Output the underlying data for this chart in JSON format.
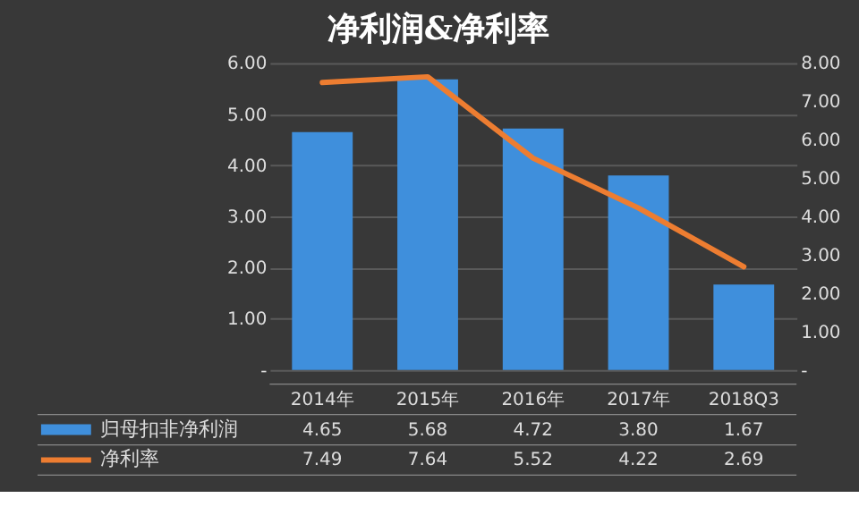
{
  "chart_data": {
    "type": "bar",
    "title": "净利润&净利率",
    "categories": [
      "2014年",
      "2015年",
      "2016年",
      "2017年",
      "2018Q3"
    ],
    "series": [
      {
        "name": "归母扣非净利润",
        "color": "#3f8fdc",
        "values": [
          4.65,
          5.68,
          4.72,
          3.8,
          1.67
        ],
        "value_labels": [
          "4.65",
          "5.68",
          "4.72",
          "3.80",
          "1.67"
        ]
      },
      {
        "name": "净利率",
        "type": "line",
        "axis": "y2",
        "color": "#ed7d31",
        "values": [
          7.49,
          7.64,
          5.52,
          4.22,
          2.69
        ],
        "value_labels": [
          "7.49",
          "7.64",
          "5.52",
          "4.22",
          "2.69"
        ]
      }
    ],
    "ylim": [
      0,
      6
    ],
    "yticks": [
      {
        "value": 0,
        "label": "-"
      },
      {
        "value": 1,
        "label": "1.00"
      },
      {
        "value": 2,
        "label": "2.00"
      },
      {
        "value": 3,
        "label": "3.00"
      },
      {
        "value": 4,
        "label": "4.00"
      },
      {
        "value": 5,
        "label": "5.00"
      },
      {
        "value": 6,
        "label": "6.00"
      }
    ],
    "y2lim": [
      0,
      8
    ],
    "y2ticks": [
      {
        "value": 0,
        "label": "-"
      },
      {
        "value": 1,
        "label": "1.00"
      },
      {
        "value": 2,
        "label": "2.00"
      },
      {
        "value": 3,
        "label": "3.00"
      },
      {
        "value": 4,
        "label": "4.00"
      },
      {
        "value": 5,
        "label": "5.00"
      },
      {
        "value": 6,
        "label": "6.00"
      },
      {
        "value": 7,
        "label": "7.00"
      },
      {
        "value": 8,
        "label": "8.00"
      }
    ],
    "grid": "y",
    "legend": "bottom",
    "marker": "none",
    "line_style": "solid"
  }
}
